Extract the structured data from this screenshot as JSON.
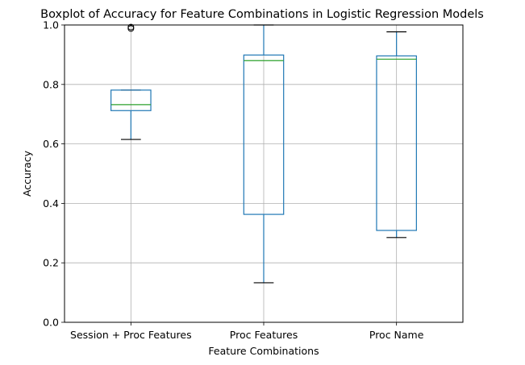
{
  "chart_data": {
    "type": "boxplot",
    "title": "Boxplot of Accuracy for Feature Combinations in Logistic Regression Models",
    "xlabel": "Feature Combinations",
    "ylabel": "Accuracy",
    "ylim": [
      0.0,
      1.0
    ],
    "yticks": [
      "0.0",
      "0.2",
      "0.4",
      "0.6",
      "0.8",
      "1.0"
    ],
    "grid": true,
    "categories": [
      "Session + Proc Features",
      "Proc Features",
      "Proc Name"
    ],
    "boxes": [
      {
        "name": "Session + Proc Features",
        "whislo": 0.615,
        "q1": 0.712,
        "median": 0.732,
        "q3": 0.781,
        "whishi": 0.781,
        "fliers": [
          0.988,
          0.993
        ]
      },
      {
        "name": "Proc Features",
        "whislo": 0.133,
        "q1": 0.363,
        "median": 0.88,
        "q3": 0.899,
        "whishi": 1.0,
        "fliers": []
      },
      {
        "name": "Proc Name",
        "whislo": 0.285,
        "q1": 0.309,
        "median": 0.885,
        "q3": 0.896,
        "whishi": 0.977,
        "fliers": []
      }
    ],
    "colors": {
      "box": "#1f77b4",
      "median": "#2ca02c",
      "whisker_cap": "#000000",
      "grid": "#b0b0b0"
    }
  }
}
